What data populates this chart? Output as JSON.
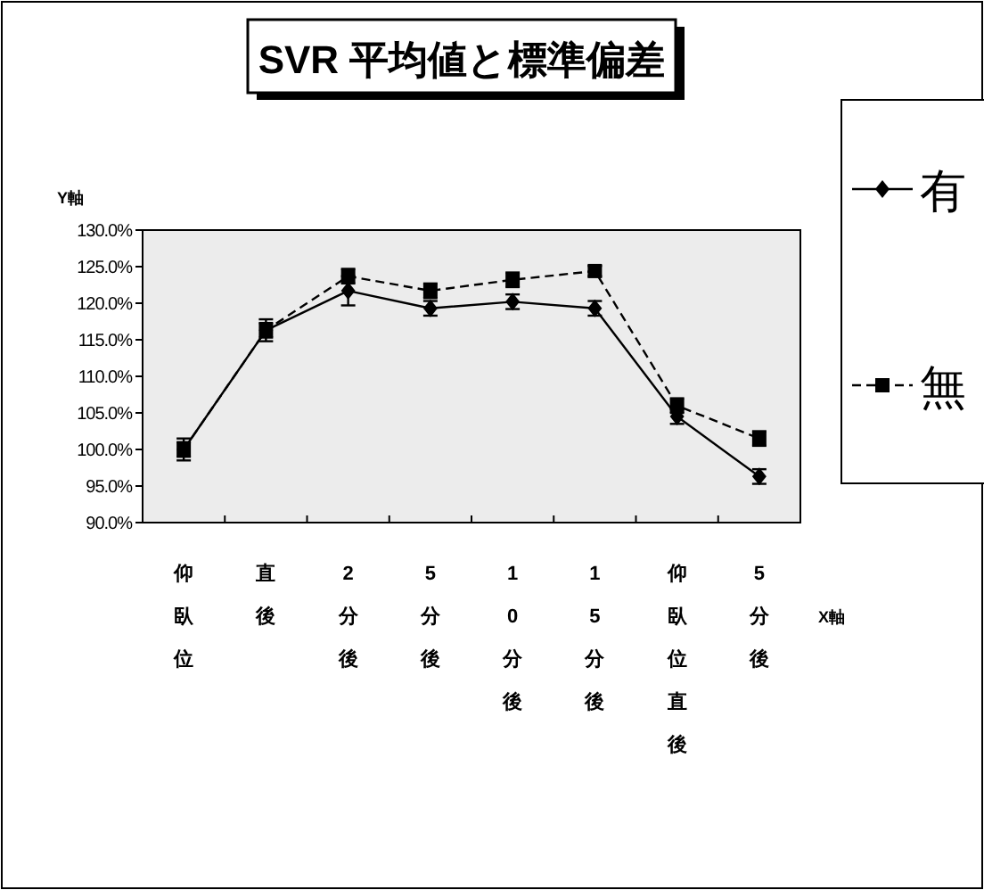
{
  "chart_data": {
    "type": "line",
    "title": "SVR 平均値と標準偏差",
    "ylabel": "Y軸",
    "xlabel": "X軸",
    "categories": [
      "仰臥位",
      "直後",
      "2分後",
      "5分後",
      "10分後",
      "15分後",
      "仰臥位直後",
      "5分後"
    ],
    "series": [
      {
        "name": "有",
        "color": "#000000",
        "marker": "diamond",
        "line_style": "solid",
        "values": [
          100,
          116.3,
          121.7,
          119.3,
          120.2,
          119.3,
          104.5,
          96.3
        ],
        "errors": [
          1.5,
          1.5,
          2,
          1,
          1,
          1,
          1,
          1
        ]
      },
      {
        "name": "無",
        "color": "#000000",
        "marker": "square",
        "line_style": "dashed",
        "values": [
          100,
          116.3,
          123.7,
          121.7,
          123.2,
          124.4,
          106,
          101.5
        ],
        "errors": [
          1,
          1,
          1,
          1,
          1,
          0.7,
          1,
          1
        ]
      }
    ],
    "ylim": [
      90,
      130
    ],
    "yticks": [
      {
        "value": 90,
        "label": "90.0%"
      },
      {
        "value": 95,
        "label": "95.0%"
      },
      {
        "value": 100,
        "label": "100.0%"
      },
      {
        "value": 105,
        "label": "105.0%"
      },
      {
        "value": 110,
        "label": "110.0%"
      },
      {
        "value": 115,
        "label": "115.0%"
      },
      {
        "value": 120,
        "label": "120.0%"
      },
      {
        "value": 125,
        "label": "125.0%"
      },
      {
        "value": 130,
        "label": "130.0%"
      }
    ],
    "grid": false,
    "legend": "right"
  }
}
